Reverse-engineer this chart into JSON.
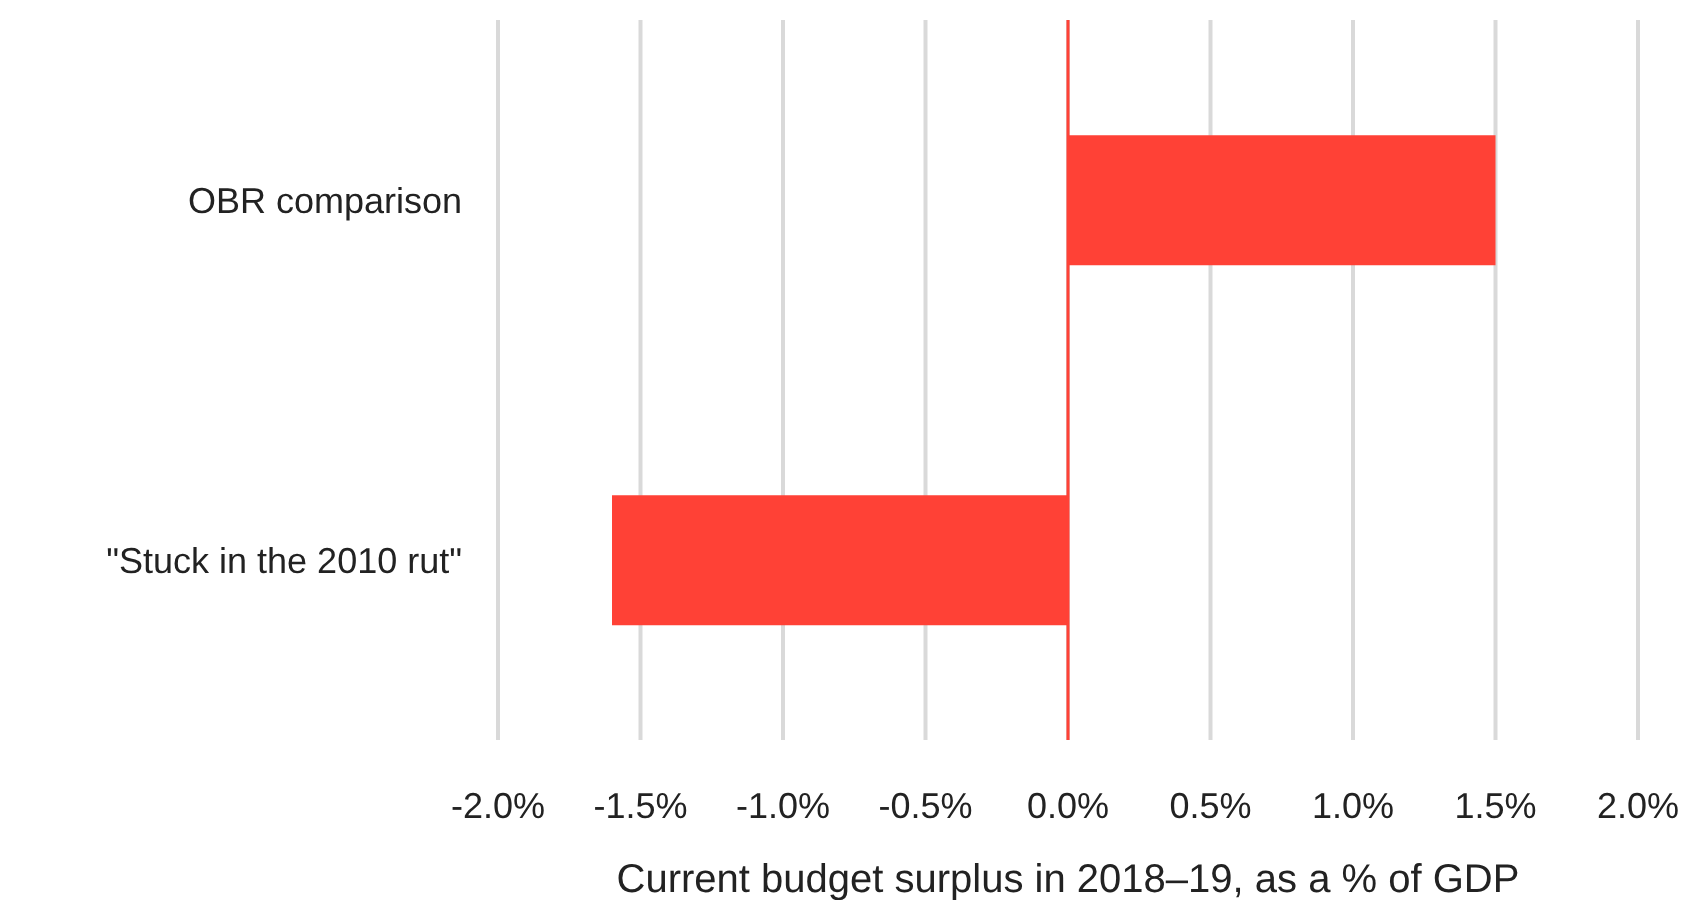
{
  "chart_data": {
    "type": "bar",
    "orientation": "horizontal",
    "xlabel": "Current budget surplus in 2018–19, as a % of GDP",
    "categories": [
      "OBR comparison",
      "\"Stuck in the 2010 rut\""
    ],
    "series": [
      {
        "color": "#ff4136",
        "values": [
          1.5,
          -1.6
        ]
      }
    ],
    "xlim": [
      -2.0,
      2.0
    ],
    "xticks": [
      {
        "value": -2.0,
        "label": "-2.0%"
      },
      {
        "value": -1.5,
        "label": "-1.5%"
      },
      {
        "value": -1.0,
        "label": "-1.0%"
      },
      {
        "value": -0.5,
        "label": "-0.5%"
      },
      {
        "value": 0,
        "label": "0.0%"
      },
      {
        "value": 0.5,
        "label": "0.5%"
      },
      {
        "value": 1.0,
        "label": "1.0%"
      },
      {
        "value": 1.5,
        "label": "1.5%"
      },
      {
        "value": 2.0,
        "label": "2.0%"
      }
    ],
    "ref_lines": [
      {
        "axis": "x",
        "value": 0,
        "color": "#ff4136"
      }
    ],
    "grid": "x",
    "legend": false
  }
}
